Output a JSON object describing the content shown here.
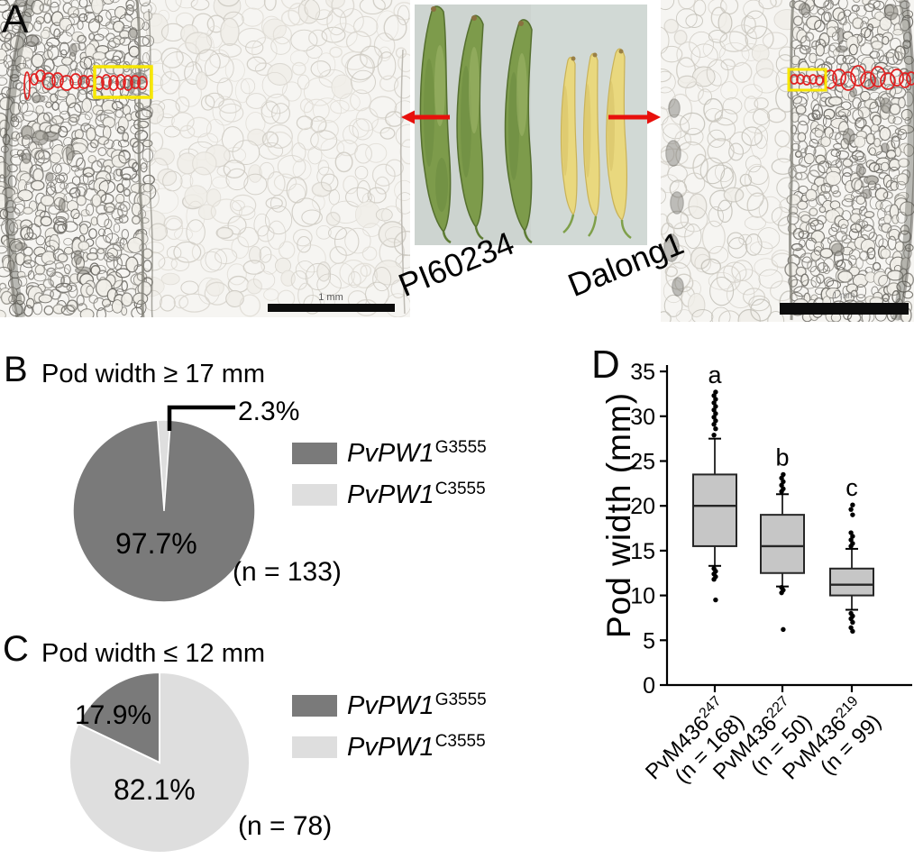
{
  "figure": {
    "panels": {
      "a": {
        "label": "A",
        "photo": {
          "left_label": "PI60234",
          "right_label": "Dalong1"
        },
        "left_scale_bar": "1 mm",
        "right_scale_bar": "1 mm"
      },
      "b": {
        "label": "B",
        "title": "Pod width ≥ 17 mm",
        "slice_small_label": "2.3%",
        "slice_large_label": "97.7%",
        "n_label": "(n = 133)",
        "legend": [
          {
            "gene": "PvPW1",
            "allele": "G3555"
          },
          {
            "gene": "PvPW1",
            "allele": "C3555"
          }
        ]
      },
      "c": {
        "label": "C",
        "title": "Pod width ≤ 12 mm",
        "slice_small_label": "17.9%",
        "slice_large_label": "82.1%",
        "n_label": "(n = 78)",
        "legend": [
          {
            "gene": "PvPW1",
            "allele": "G3555"
          },
          {
            "gene": "PvPW1",
            "allele": "C3555"
          }
        ]
      },
      "d": {
        "label": "D",
        "ylabel": "Pod width (mm)"
      }
    }
  },
  "colors": {
    "pie_dark": "#7a7a7a",
    "pie_light": "#dedede",
    "box_fill": "#c6c6c6",
    "box_stroke": "#262626",
    "arrow_red": "#e8100c",
    "annotation_red": "#e02121",
    "annotation_yellow": "#f7e700"
  },
  "chart_data": [
    {
      "id": "pie_b",
      "type": "pie",
      "title": "Pod width ≥ 17 mm",
      "n": 133,
      "legend_position": "right",
      "slices": [
        {
          "label": "PvPW1-G3555",
          "value": 97.7,
          "color": "#7a7a7a"
        },
        {
          "label": "PvPW1-C3555",
          "value": 2.3,
          "color": "#dedede"
        }
      ]
    },
    {
      "id": "pie_c",
      "type": "pie",
      "title": "Pod width ≤ 12 mm",
      "n": 78,
      "legend_position": "right",
      "slices": [
        {
          "label": "PvPW1-G3555",
          "value": 17.9,
          "color": "#7a7a7a"
        },
        {
          "label": "PvPW1-C3555",
          "value": 82.1,
          "color": "#dedede"
        }
      ]
    },
    {
      "id": "box_d",
      "type": "box",
      "ylabel": "Pod width (mm)",
      "ylim": [
        0,
        35
      ],
      "yticks": [
        0,
        5,
        10,
        15,
        20,
        25,
        30,
        35
      ],
      "groups": [
        {
          "label": "PvM436",
          "sup": "247",
          "n_label": "(n = 168)",
          "letter": "a",
          "q1": 15.5,
          "median": 20.0,
          "q3": 23.5,
          "whisker_low": 13.3,
          "whisker_high": 27.5,
          "outliers_high": [
            27.9,
            28.6,
            29.1,
            29.5,
            29.9,
            30.3,
            30.7,
            31.1,
            31.5,
            31.9,
            32.3,
            32.7
          ],
          "outliers_low": [
            13.0,
            12.7,
            12.4,
            12.1,
            11.8,
            9.5
          ]
        },
        {
          "label": "PvM436",
          "sup": "227",
          "n_label": "(n = 50)",
          "letter": "b",
          "q1": 12.5,
          "median": 15.5,
          "q3": 19.0,
          "whisker_low": 11.0,
          "whisker_high": 21.3,
          "outliers_high": [
            21.6,
            21.9,
            22.3,
            22.7,
            23.1,
            23.5
          ],
          "outliers_low": [
            10.9,
            10.6,
            10.3,
            6.2
          ]
        },
        {
          "label": "PvM436",
          "sup": "219",
          "n_label": "(n = 99)",
          "letter": "c",
          "q1": 10.0,
          "median": 11.2,
          "q3": 13.0,
          "whisker_low": 8.4,
          "whisker_high": 15.2,
          "outliers_high": [
            15.5,
            15.8,
            16.2,
            16.6,
            17.0,
            19.0,
            19.6,
            20.1
          ],
          "outliers_low": [
            8.0,
            7.7,
            7.4,
            7.0,
            6.4,
            6.0
          ]
        }
      ]
    }
  ]
}
